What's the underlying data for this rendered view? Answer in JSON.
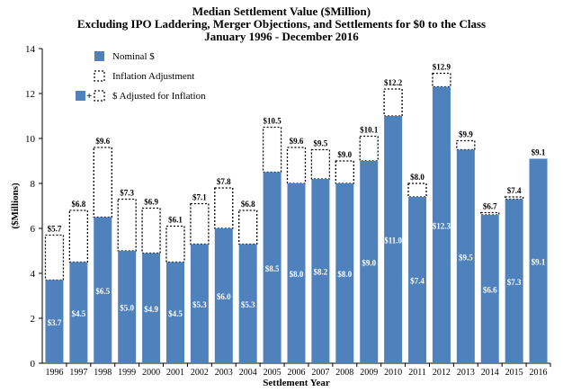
{
  "chart_data": {
    "type": "bar",
    "title": "Median Settlement Value ($Million)",
    "subtitle": "Excluding IPO Laddering, Merger Objections, and Settlements for $0 to the Class",
    "period": "January 1996 - December 2016",
    "xlabel": "Settlement Year",
    "ylabel": "($Millions)",
    "ylim": [
      0,
      14
    ],
    "yticks": [
      "0",
      "2",
      "4",
      "6",
      "8",
      "10",
      "12",
      "14"
    ],
    "grid": false,
    "legend_position": "top-left",
    "legend": {
      "nominal": "Nominal $",
      "inflation": "Inflation Adjustment",
      "adjusted_plus": "+",
      "adjusted": "$ Adjusted for Inflation"
    },
    "categories": [
      "1996",
      "1997",
      "1998",
      "1999",
      "2000",
      "2001",
      "2002",
      "2003",
      "2004",
      "2005",
      "2006",
      "2007",
      "2008",
      "2009",
      "2010",
      "2011",
      "2012",
      "2013",
      "2014",
      "2015",
      "2016"
    ],
    "series": [
      {
        "name": "Nominal $",
        "values": [
          3.7,
          4.5,
          6.5,
          5.0,
          4.9,
          4.5,
          5.3,
          6.0,
          5.3,
          8.5,
          8.0,
          8.2,
          8.0,
          9.0,
          11.0,
          7.4,
          12.3,
          9.5,
          6.6,
          7.3,
          9.1
        ],
        "labels": [
          "$3.7",
          "$4.5",
          "$6.5",
          "$5.0",
          "$4.9",
          "$4.5",
          "$5.3",
          "$6.0",
          "$5.3",
          "$8.5",
          "$8.0",
          "$8.2",
          "$8.0",
          "$9.0",
          "$11.0",
          "$7.4",
          "$12.3",
          "$9.5",
          "$6.6",
          "$7.3",
          "$9.1"
        ]
      },
      {
        "name": "$ Adjusted for Inflation",
        "values": [
          5.7,
          6.8,
          9.6,
          7.3,
          6.9,
          6.1,
          7.1,
          7.8,
          6.8,
          10.5,
          9.6,
          9.5,
          9.0,
          10.1,
          12.2,
          8.0,
          12.9,
          9.9,
          6.7,
          7.4,
          9.1
        ],
        "labels": [
          "$5.7",
          "$6.8",
          "$9.6",
          "$7.3",
          "$6.9",
          "$6.1",
          "$7.1",
          "$7.8",
          "$6.8",
          "$10.5",
          "$9.6",
          "$9.5",
          "$9.0",
          "$10.1",
          "$12.2",
          "$8.0",
          "$12.9",
          "$9.9",
          "$6.7",
          "$7.4",
          "$9.1"
        ]
      }
    ],
    "colors": {
      "nominal": "#4f81bd",
      "nominal_label": "#ffffff",
      "axis": "#000000"
    }
  }
}
